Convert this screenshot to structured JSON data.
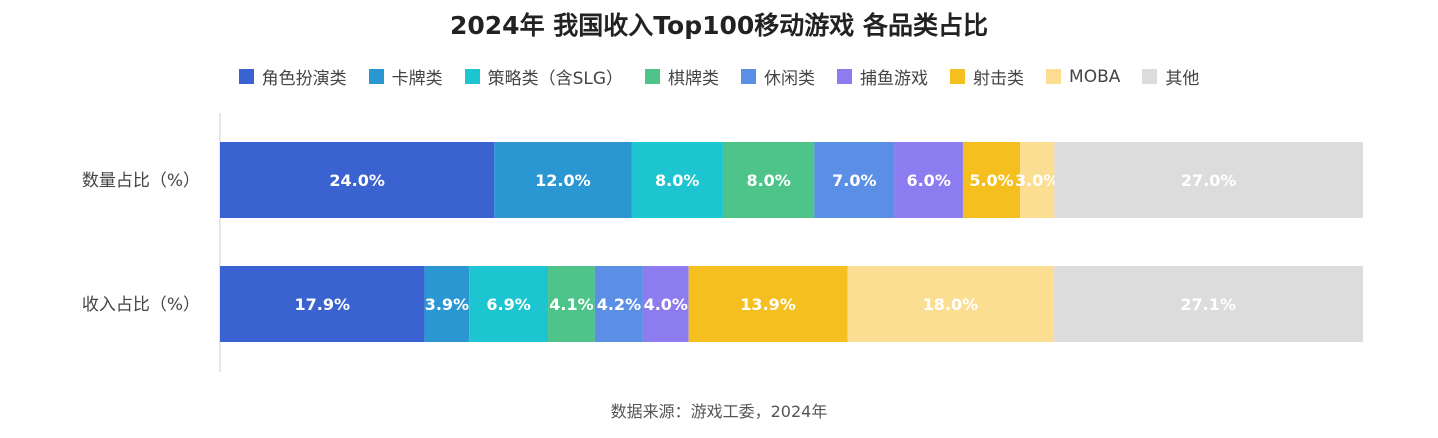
{
  "chart_data": {
    "type": "bar",
    "orientation": "horizontal",
    "stacked": true,
    "title": "2024年 我国收入Top100移动游戏 各品类占比",
    "categories": [
      "数量占比（%）",
      "收入占比（%）"
    ],
    "series": [
      {
        "name": "角色扮演类",
        "color": "#3a62d0",
        "values": [
          24.0,
          17.9
        ],
        "labels": [
          "24.0%",
          "17.9%"
        ]
      },
      {
        "name": "卡牌类",
        "color": "#2a96d2",
        "values": [
          12.0,
          3.9
        ],
        "labels": [
          "12.0%",
          "3.9%"
        ]
      },
      {
        "name": "策略类（含SLG）",
        "color": "#1cc5cf",
        "values": [
          8.0,
          6.9
        ],
        "labels": [
          "8.0%",
          "6.9%"
        ]
      },
      {
        "name": "棋牌类",
        "color": "#4ec48a",
        "values": [
          8.0,
          4.1
        ],
        "labels": [
          "8.0%",
          "4.1%"
        ]
      },
      {
        "name": "休闲类",
        "color": "#5b8fe6",
        "values": [
          7.0,
          4.2
        ],
        "labels": [
          "7.0%",
          "4.2%"
        ]
      },
      {
        "name": "捕鱼游戏",
        "color": "#8d7cf0",
        "values": [
          6.0,
          4.0
        ],
        "labels": [
          "6.0%",
          "4.0%"
        ]
      },
      {
        "name": "射击类",
        "color": "#f5c01f",
        "values": [
          5.0,
          13.9
        ],
        "labels": [
          "5.0%",
          "13.9%"
        ]
      },
      {
        "name": "MOBA",
        "color": "#fbde92",
        "values": [
          3.0,
          18.0
        ],
        "labels": [
          "3.0%",
          "18.0%"
        ]
      },
      {
        "name": "其他",
        "color": "#dcdcdc",
        "values": [
          27.0,
          27.1
        ],
        "labels": [
          "27.0%",
          "27.1%"
        ]
      }
    ],
    "legend_position": "top",
    "grid": false
  },
  "source": "数据来源：游戏工委，2024年"
}
